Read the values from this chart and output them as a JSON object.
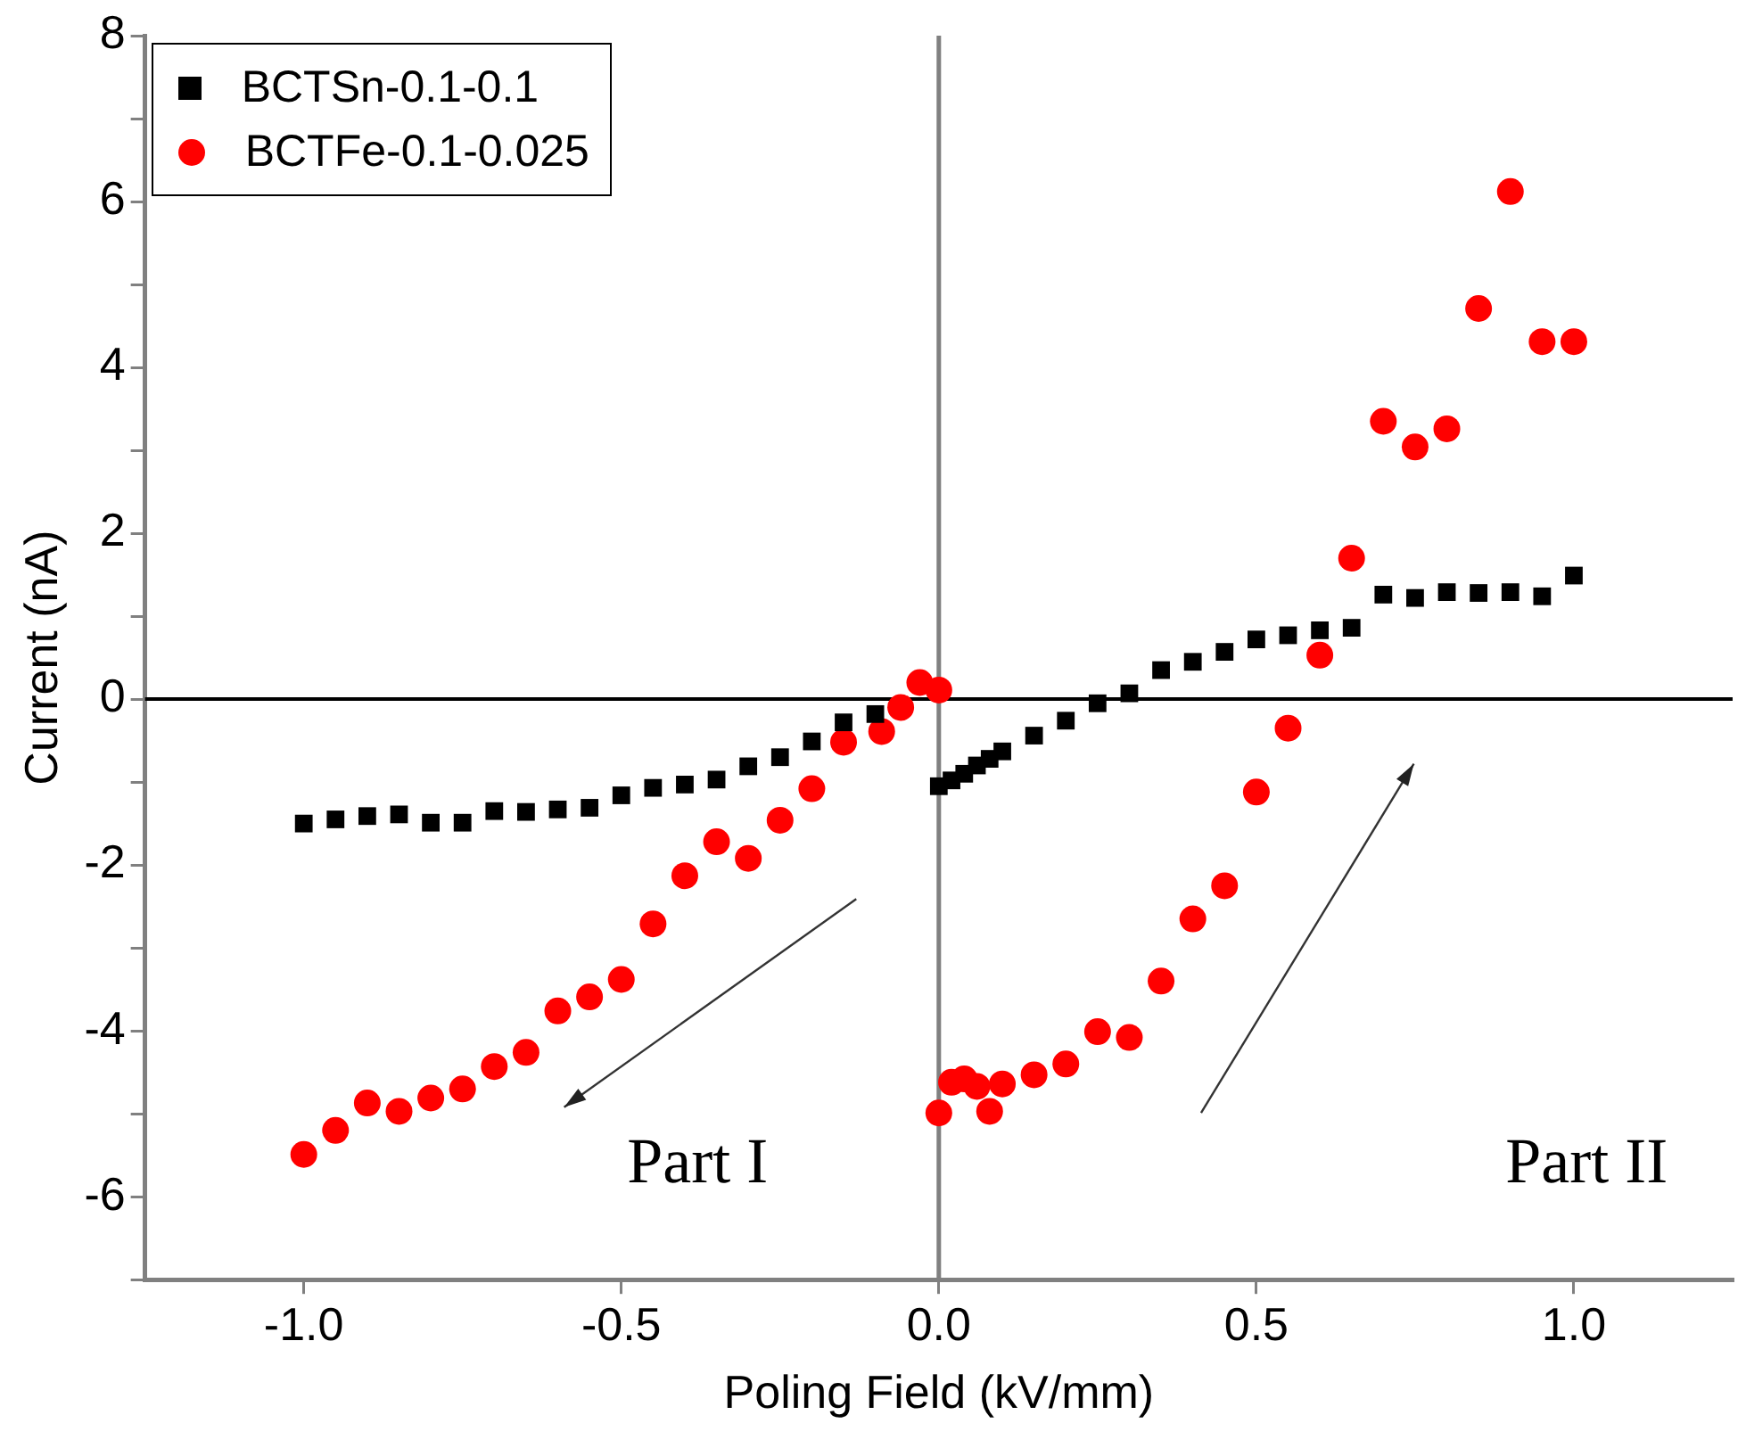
{
  "chart_data": {
    "type": "scatter",
    "xlabel": "Poling Field (kV/mm)",
    "ylabel": "Current (nA)",
    "xlim": [
      -1.25,
      1.25
    ],
    "xticks": [
      {
        "value": -1,
        "label": "-1.0"
      },
      {
        "value": -0.5,
        "label": "-0.5"
      },
      {
        "value": 0,
        "label": "0.0"
      },
      {
        "value": 0.5,
        "label": "0.5"
      },
      {
        "value": 1,
        "label": "1.0"
      }
    ],
    "ylim": [
      -7,
      8
    ],
    "yticks": [
      {
        "value": -7,
        "label": null
      },
      -6,
      {
        "value": -5,
        "label": null
      },
      -4,
      {
        "value": -3,
        "label": null
      },
      -2,
      {
        "value": -1,
        "label": null
      },
      0,
      {
        "value": 1,
        "label": null
      },
      2,
      {
        "value": 3,
        "label": null
      },
      4,
      {
        "value": 5,
        "label": null
      },
      6,
      {
        "value": 7,
        "label": null
      },
      8
    ],
    "grid": false,
    "legend": "top left",
    "ref_lines": [
      {
        "axis": "y",
        "value": 0,
        "color": "#000000"
      },
      {
        "axis": "x",
        "value": 0,
        "color": "#808080"
      }
    ],
    "annotations": [
      "Part I",
      "Part II"
    ],
    "series": [
      {
        "name": "BCTSn-0.1-0.1",
        "color": "#000000",
        "marker": "square",
        "x": [
          -1.0,
          -0.95,
          -0.9,
          -0.85,
          -0.8,
          -0.75,
          -0.7,
          -0.65,
          -0.6,
          -0.55,
          -0.5,
          -0.45,
          -0.4,
          -0.35,
          -0.3,
          -0.25,
          -0.2,
          -0.15,
          -0.1,
          0.0,
          0.02,
          0.04,
          0.06,
          0.08,
          0.1,
          0.15,
          0.2,
          0.25,
          0.3,
          0.35,
          0.4,
          0.45,
          0.5,
          0.55,
          0.6,
          0.65,
          0.7,
          0.75,
          0.8,
          0.85,
          0.9,
          0.95,
          1.0
        ],
        "values": [
          -1.5,
          -1.45,
          -1.41,
          -1.39,
          -1.49,
          -1.49,
          -1.35,
          -1.36,
          -1.33,
          -1.31,
          -1.16,
          -1.07,
          -1.03,
          -0.97,
          -0.81,
          -0.7,
          -0.51,
          -0.28,
          -0.18,
          -1.05,
          -0.98,
          -0.9,
          -0.8,
          -0.72,
          -0.63,
          -0.44,
          -0.26,
          -0.05,
          0.07,
          0.35,
          0.45,
          0.57,
          0.72,
          0.77,
          0.83,
          0.86,
          1.26,
          1.22,
          1.29,
          1.28,
          1.29,
          1.24,
          1.49
        ]
      },
      {
        "name": "BCTFe-0.1-0.025",
        "color": "#ff0000",
        "marker": "circle",
        "x": [
          -1.0,
          -0.95,
          -0.9,
          -0.85,
          -0.8,
          -0.75,
          -0.7,
          -0.65,
          -0.6,
          -0.55,
          -0.5,
          -0.45,
          -0.4,
          -0.35,
          -0.3,
          -0.25,
          -0.2,
          -0.15,
          -0.09,
          -0.06,
          -0.03,
          0.0,
          0.0,
          0.02,
          0.04,
          0.06,
          0.08,
          0.1,
          0.15,
          0.2,
          0.25,
          0.3,
          0.35,
          0.4,
          0.45,
          0.5,
          0.55,
          0.6,
          0.65,
          0.7,
          0.75,
          0.8,
          0.85,
          0.9,
          0.95,
          1.0
        ],
        "values": [
          -5.49,
          -5.2,
          -4.87,
          -4.97,
          -4.81,
          -4.7,
          -4.43,
          -4.26,
          -3.76,
          -3.59,
          -3.38,
          -2.71,
          -2.13,
          -1.72,
          -1.92,
          -1.46,
          -1.08,
          -0.52,
          -0.39,
          -0.1,
          0.2,
          0.11,
          -4.99,
          -4.62,
          -4.58,
          -4.67,
          -4.97,
          -4.64,
          -4.53,
          -4.4,
          -4.01,
          -4.08,
          -3.4,
          -2.65,
          -2.25,
          -1.12,
          -0.35,
          0.53,
          1.7,
          3.35,
          3.04,
          3.26,
          4.71,
          6.12,
          4.31,
          4.31
        ]
      }
    ]
  }
}
